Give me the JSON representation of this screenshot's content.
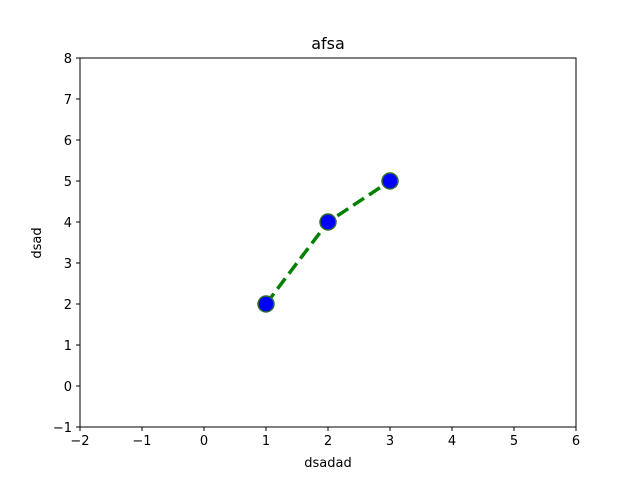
{
  "chart_data": {
    "type": "line",
    "title": "afsa",
    "xlabel": "dsadad",
    "ylabel": "dsad",
    "xlim": [
      -2,
      6
    ],
    "ylim": [
      -1,
      8
    ],
    "xticks": [
      -2,
      -1,
      0,
      1,
      2,
      3,
      4,
      5,
      6
    ],
    "yticks": [
      -1,
      0,
      1,
      2,
      3,
      4,
      5,
      6,
      7,
      8
    ],
    "xtick_labels": [
      "−2",
      "−1",
      "0",
      "1",
      "2",
      "3",
      "4",
      "5",
      "6"
    ],
    "ytick_labels": [
      "−1",
      "0",
      "1",
      "2",
      "3",
      "4",
      "5",
      "6",
      "7",
      "8"
    ],
    "grid": false,
    "series": [
      {
        "x": [
          1,
          2,
          3
        ],
        "y": [
          2,
          4,
          5
        ],
        "line_color": "#008000",
        "line_style": "dashed",
        "marker": "circle",
        "marker_face_color": "#0000ff",
        "marker_edge_color": "#2f6f2f"
      }
    ]
  }
}
